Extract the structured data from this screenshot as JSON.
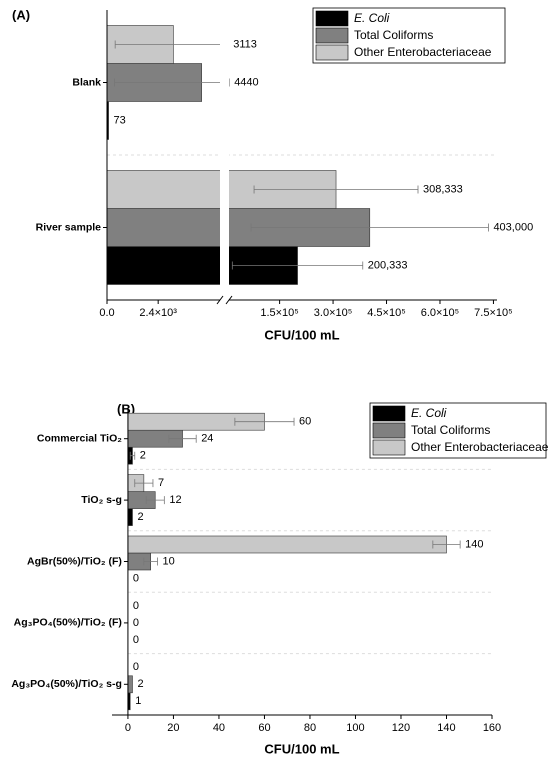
{
  "chart_data": [
    {
      "type": "bar",
      "orientation": "horizontal",
      "title": "(A)",
      "x_label": "CFU/100 mL",
      "categories": [
        "Blank",
        "River sample"
      ],
      "series": [
        {
          "name": "E. Coli",
          "color": "#000000",
          "values": [
            73,
            200333
          ],
          "value_labels": [
            "73",
            "200,333"
          ],
          "errors": [
            null,
            183000
          ]
        },
        {
          "name": "Total Coliforms",
          "color": "#808080",
          "values": [
            4440,
            403000
          ],
          "value_labels": [
            "4440",
            "403,000"
          ],
          "errors": [
            4090,
            333000
          ]
        },
        {
          "name": "Other Enterobacteriaceae",
          "color": "#c8c8c8",
          "values": [
            3113,
            308333
          ],
          "value_labels": [
            "3113",
            "308,333"
          ],
          "errors": [
            2730,
            230000
          ]
        }
      ],
      "xlim": [
        0,
        760000
      ],
      "xbreak": [
        5300,
        8000
      ],
      "xticks": [
        {
          "value": 0,
          "label": "0.0"
        },
        {
          "value": 2400,
          "label": "2.4×10³"
        },
        {
          "value": 150000,
          "label": "1.5×10⁵"
        },
        {
          "value": 300000,
          "label": "3.0×10⁵"
        },
        {
          "value": 450000,
          "label": "4.5×10⁵"
        },
        {
          "value": 600000,
          "label": "6.0×10⁵"
        },
        {
          "value": 750000,
          "label": "7.5×10⁵"
        }
      ],
      "legend": "upper right"
    },
    {
      "type": "bar",
      "orientation": "horizontal",
      "title": "(B)",
      "x_label": "CFU/100 mL",
      "categories": [
        "Commercial TiO₂",
        "TiO₂ s-g",
        "AgBr(50%)/TiO₂ (F)",
        "Ag₃PO₄(50%)/TiO₂ (F)",
        "Ag₃PO₄(50%)/TiO₂ s-g"
      ],
      "series": [
        {
          "name": "E. Coli",
          "color": "#000000",
          "values": [
            2,
            2,
            0,
            0,
            1
          ],
          "errors": [
            1,
            null,
            null,
            null,
            null
          ]
        },
        {
          "name": "Total Coliforms",
          "color": "#808080",
          "values": [
            24,
            12,
            10,
            0,
            2
          ],
          "errors": [
            6,
            4,
            3,
            null,
            null
          ]
        },
        {
          "name": "Other Enterobacteriaceae",
          "color": "#c8c8c8",
          "values": [
            60,
            7,
            140,
            0,
            0
          ],
          "errors": [
            13,
            4,
            6,
            null,
            null
          ]
        }
      ],
      "xlim": [
        -7,
        160
      ],
      "xticks": [
        0,
        20,
        40,
        60,
        80,
        100,
        120,
        140,
        160
      ],
      "legend": "upper right"
    }
  ]
}
